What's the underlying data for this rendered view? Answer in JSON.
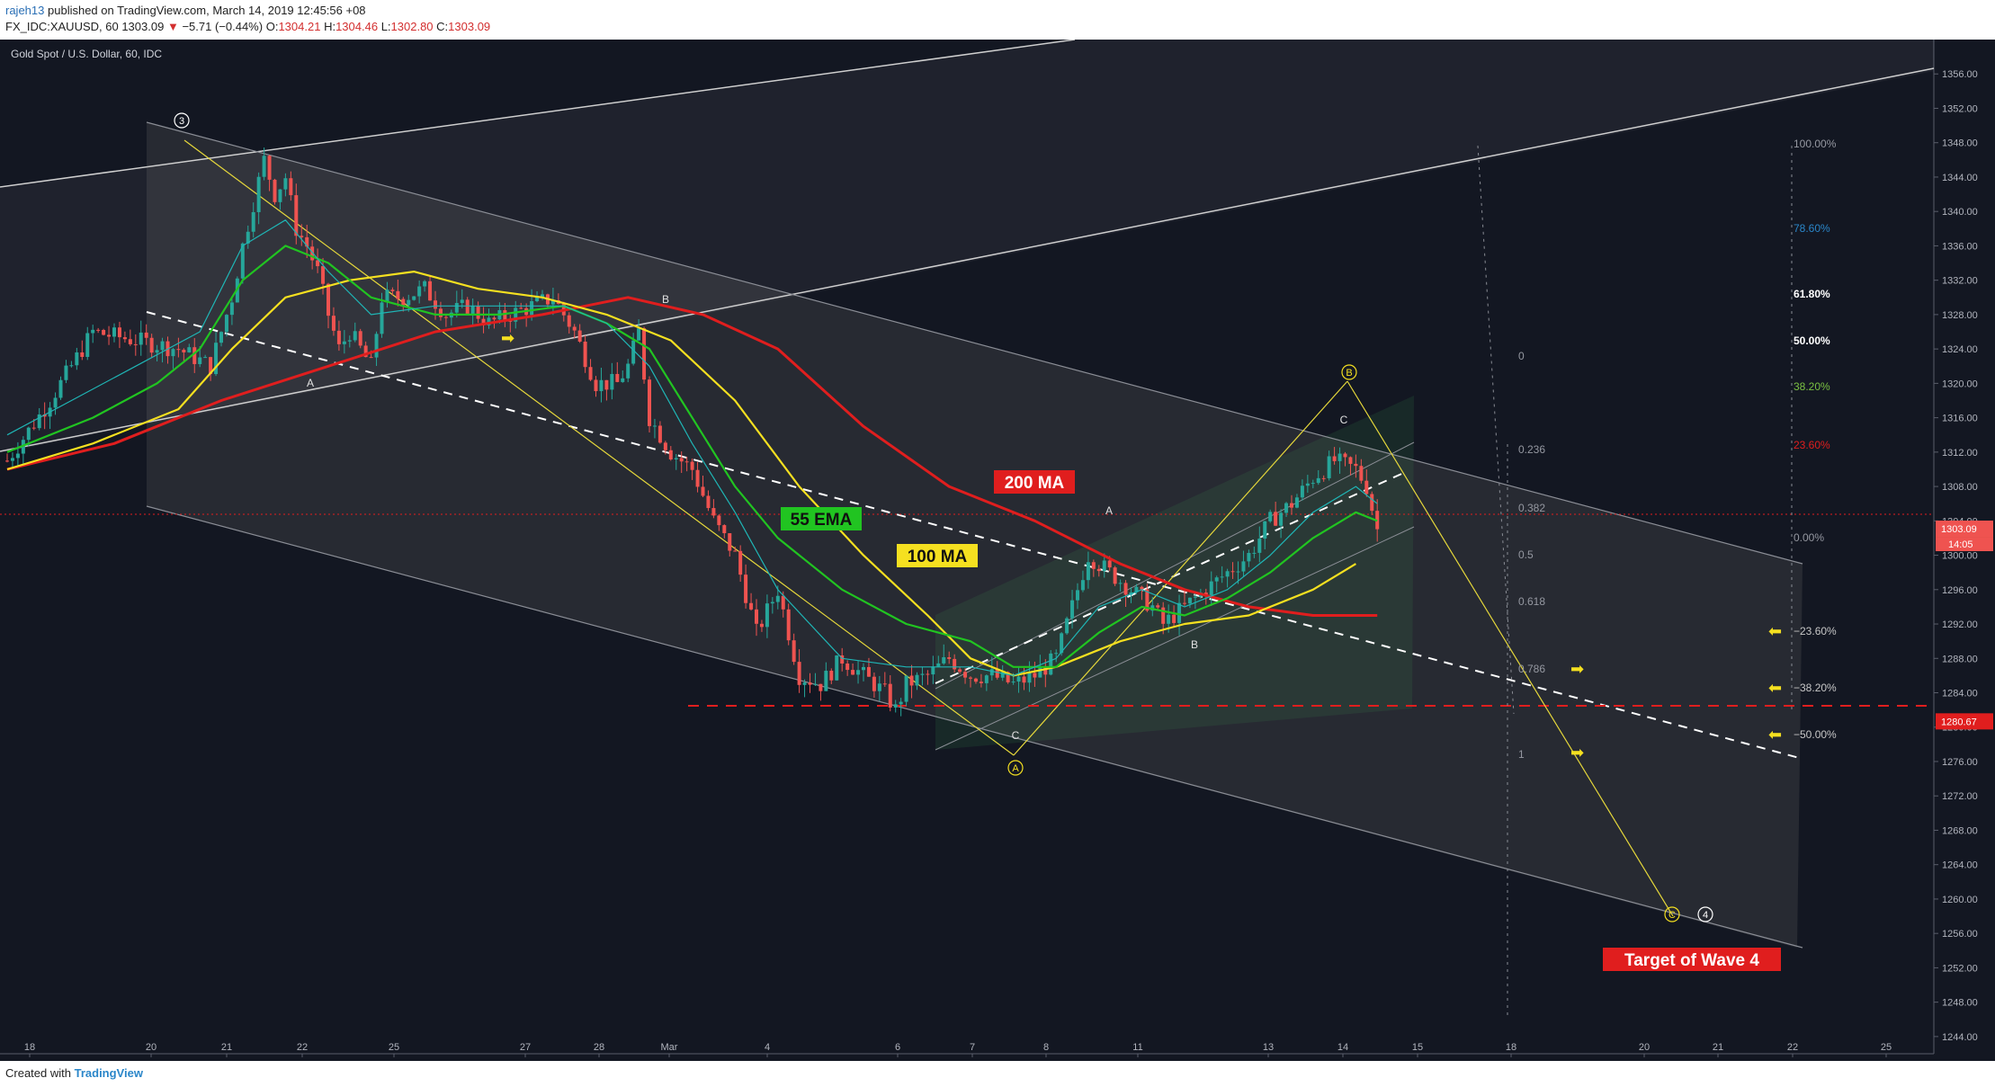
{
  "header": {
    "user": "rajeh13",
    "published": "published on TradingView.com, March 14, 2019 12:45:56 +08",
    "symbol": "FX_IDC:XAUUSD, 60",
    "price": "1303.09",
    "change_arrow": "▼",
    "change": "−5.71 (−0.44%)",
    "o_label": "O:",
    "o_value": "1304.21",
    "h_label": "H:",
    "h_value": "1304.46",
    "l_label": "L:",
    "l_value": "1302.80",
    "c_label": "C:",
    "c_value": "1303.09"
  },
  "footer": {
    "created_with": "Created with",
    "logo_text": "TradingView"
  },
  "chart_data": {
    "type": "candlestick",
    "title": "Gold Spot / U.S. Dollar, 60, IDC",
    "ylim": [
      1242,
      1360
    ],
    "y_ticks": [
      1244,
      1248,
      1252,
      1256,
      1260,
      1264,
      1268,
      1272,
      1276,
      1280,
      1284,
      1288,
      1292,
      1296,
      1300,
      1304,
      1308,
      1312,
      1316,
      1320,
      1324,
      1328,
      1332,
      1336,
      1340,
      1344,
      1348,
      1352,
      1356
    ],
    "x_ticks": [
      "18",
      "20",
      "21",
      "22",
      "25",
      "27",
      "28",
      "Mar",
      "4",
      "6",
      "7",
      "8",
      "11",
      "13",
      "14",
      "15",
      "18",
      "20",
      "21",
      "22",
      "25"
    ],
    "last_price": "1303.09",
    "last_time": "14:05",
    "support_level": "1280.67",
    "price_path": [
      [
        0,
        1311
      ],
      [
        4,
        1318
      ],
      [
        8,
        1326
      ],
      [
        12,
        1325
      ],
      [
        16,
        1324
      ],
      [
        19,
        1322
      ],
      [
        21,
        1330
      ],
      [
        22,
        1336
      ],
      [
        23,
        1341
      ],
      [
        24,
        1346
      ],
      [
        25,
        1342
      ],
      [
        26,
        1344
      ],
      [
        27,
        1338
      ],
      [
        28,
        1336
      ],
      [
        29,
        1333
      ],
      [
        30,
        1328
      ],
      [
        31,
        1324
      ],
      [
        32,
        1326
      ],
      [
        33,
        1324
      ],
      [
        34,
        1322
      ],
      [
        35,
        1330
      ],
      [
        37,
        1330
      ],
      [
        39,
        1331
      ],
      [
        41,
        1328
      ],
      [
        43,
        1329
      ],
      [
        45,
        1327
      ],
      [
        47,
        1328
      ],
      [
        49,
        1329
      ],
      [
        51,
        1330
      ],
      [
        53,
        1326
      ],
      [
        55,
        1320
      ],
      [
        57,
        1320
      ],
      [
        58,
        1322
      ],
      [
        59,
        1326
      ],
      [
        60,
        1316
      ],
      [
        62,
        1312
      ],
      [
        64,
        1310
      ],
      [
        66,
        1304
      ],
      [
        68,
        1300
      ],
      [
        70,
        1291
      ],
      [
        72,
        1296
      ],
      [
        74,
        1286
      ],
      [
        76,
        1285
      ],
      [
        78,
        1288
      ],
      [
        80,
        1286
      ],
      [
        82,
        1284
      ],
      [
        83,
        1282
      ],
      [
        84,
        1285
      ],
      [
        86,
        1286
      ],
      [
        88,
        1288
      ],
      [
        90,
        1286
      ],
      [
        92,
        1286
      ],
      [
        94,
        1285
      ],
      [
        96,
        1286
      ],
      [
        98,
        1288
      ],
      [
        99,
        1292
      ],
      [
        100,
        1296
      ],
      [
        101,
        1300
      ],
      [
        103,
        1298
      ],
      [
        105,
        1296
      ],
      [
        107,
        1294
      ],
      [
        108,
        1292
      ],
      [
        110,
        1294
      ],
      [
        112,
        1296
      ],
      [
        114,
        1298
      ],
      [
        116,
        1300
      ],
      [
        118,
        1304
      ],
      [
        120,
        1306
      ],
      [
        122,
        1309
      ],
      [
        124,
        1311
      ],
      [
        126,
        1310
      ],
      [
        127,
        1308
      ],
      [
        128,
        1303
      ]
    ],
    "series": [
      {
        "name": "200 MA",
        "color": "#e01e1e",
        "points": [
          [
            0,
            1310
          ],
          [
            10,
            1313
          ],
          [
            20,
            1318
          ],
          [
            30,
            1322
          ],
          [
            40,
            1326
          ],
          [
            50,
            1328
          ],
          [
            58,
            1330
          ],
          [
            65,
            1328
          ],
          [
            72,
            1324
          ],
          [
            80,
            1315
          ],
          [
            88,
            1308
          ],
          [
            96,
            1304
          ],
          [
            104,
            1299
          ],
          [
            110,
            1296
          ],
          [
            116,
            1294
          ],
          [
            122,
            1293
          ],
          [
            128,
            1293
          ]
        ]
      },
      {
        "name": "100 MA",
        "color": "#f5e020",
        "points": [
          [
            0,
            1310
          ],
          [
            8,
            1313
          ],
          [
            16,
            1317
          ],
          [
            21,
            1324
          ],
          [
            26,
            1330
          ],
          [
            32,
            1332
          ],
          [
            38,
            1333
          ],
          [
            44,
            1331
          ],
          [
            50,
            1330
          ],
          [
            56,
            1328
          ],
          [
            62,
            1325
          ],
          [
            68,
            1318
          ],
          [
            74,
            1308
          ],
          [
            80,
            1300
          ],
          [
            86,
            1293
          ],
          [
            90,
            1288
          ],
          [
            94,
            1286
          ],
          [
            98,
            1287
          ],
          [
            104,
            1290
          ],
          [
            110,
            1292
          ],
          [
            116,
            1293
          ],
          [
            122,
            1296
          ],
          [
            126,
            1299
          ]
        ]
      },
      {
        "name": "55 EMA",
        "color": "#21c421",
        "points": [
          [
            0,
            1312
          ],
          [
            8,
            1316
          ],
          [
            14,
            1320
          ],
          [
            18,
            1324
          ],
          [
            22,
            1332
          ],
          [
            26,
            1336
          ],
          [
            30,
            1334
          ],
          [
            34,
            1330
          ],
          [
            40,
            1328
          ],
          [
            46,
            1328
          ],
          [
            52,
            1329
          ],
          [
            56,
            1327
          ],
          [
            60,
            1324
          ],
          [
            64,
            1316
          ],
          [
            68,
            1308
          ],
          [
            72,
            1302
          ],
          [
            78,
            1296
          ],
          [
            84,
            1292
          ],
          [
            90,
            1290
          ],
          [
            94,
            1287
          ],
          [
            98,
            1287
          ],
          [
            102,
            1291
          ],
          [
            106,
            1294
          ],
          [
            110,
            1293
          ],
          [
            114,
            1295
          ],
          [
            118,
            1298
          ],
          [
            122,
            1302
          ],
          [
            126,
            1305
          ],
          [
            128,
            1304
          ]
        ]
      },
      {
        "name": "",
        "color": "#1fb5b5",
        "points": [
          [
            0,
            1314
          ],
          [
            6,
            1318
          ],
          [
            12,
            1322
          ],
          [
            18,
            1326
          ],
          [
            22,
            1336
          ],
          [
            26,
            1339
          ],
          [
            30,
            1333
          ],
          [
            34,
            1328
          ],
          [
            40,
            1329
          ],
          [
            46,
            1329
          ],
          [
            52,
            1329
          ],
          [
            56,
            1327
          ],
          [
            60,
            1322
          ],
          [
            64,
            1313
          ],
          [
            68,
            1305
          ],
          [
            72,
            1296
          ],
          [
            78,
            1288
          ],
          [
            84,
            1287
          ],
          [
            90,
            1287
          ],
          [
            94,
            1286
          ],
          [
            98,
            1288
          ],
          [
            102,
            1294
          ],
          [
            106,
            1296
          ],
          [
            110,
            1294
          ],
          [
            114,
            1296
          ],
          [
            118,
            1300
          ],
          [
            122,
            1305
          ],
          [
            126,
            1308
          ],
          [
            128,
            1306
          ]
        ]
      }
    ],
    "fibonacci_retracement": [
      "100.00%",
      "78.60%",
      "61.80%",
      "50.00%",
      "38.20%",
      "23.60%",
      "0.00%"
    ],
    "fibonacci_extension": [
      "−23.60%",
      "−38.20%",
      "−50.00%"
    ],
    "fibonacci_time": [
      "0",
      "0.236",
      "0.382",
      "0.5",
      "0.618",
      "0.786",
      "1"
    ],
    "wave_labels": [
      "3",
      "A",
      "B",
      "A",
      "C",
      "B",
      "C",
      "B",
      "C",
      "4"
    ],
    "annotations": [
      "200 MA",
      "55 EMA",
      "100 MA",
      "Target of Wave 4"
    ],
    "colors": {
      "background": "#131722",
      "up": "#26a69a",
      "down": "#ef5350",
      "label_red": "#e01e1e",
      "label_green": "#21c421",
      "label_yellow": "#f5e020"
    }
  }
}
